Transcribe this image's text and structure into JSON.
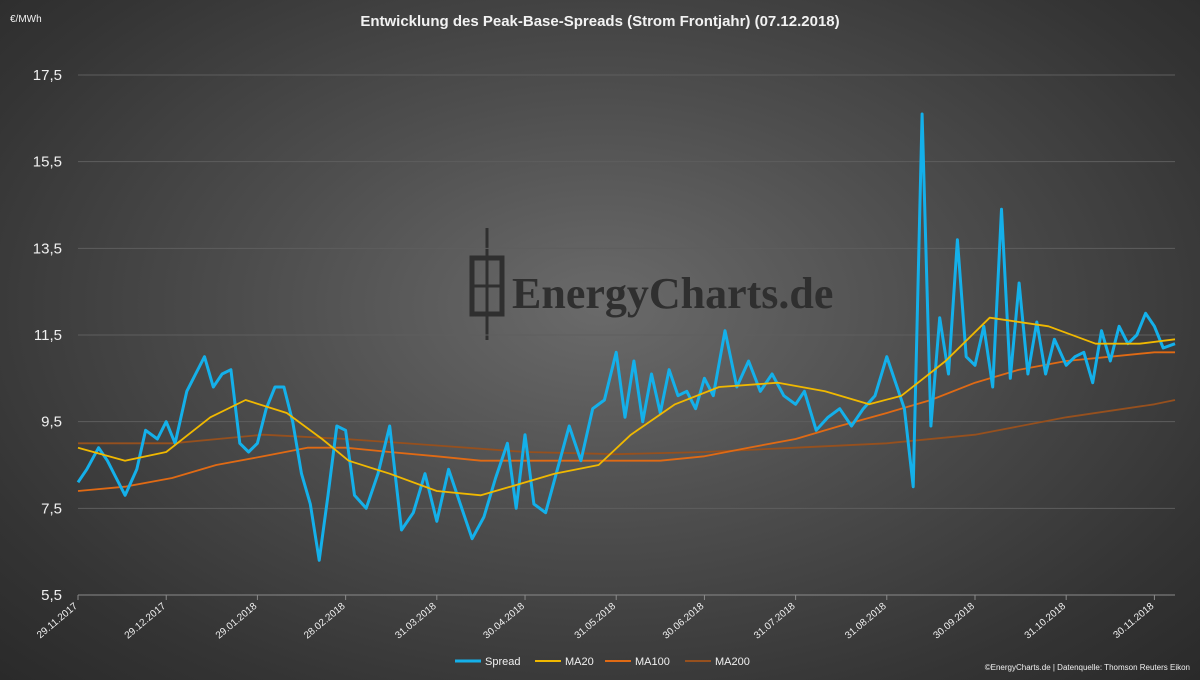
{
  "chart_data": {
    "type": "line",
    "title": "Entwicklung des Peak-Base-Spreads (Strom Frontjahr) (07.12.2018)",
    "ylabel": "€/MWh",
    "ylim": [
      5.5,
      17.5
    ],
    "yticks": [
      "5,5",
      "7,5",
      "9,5",
      "11,5",
      "13,5",
      "15,5",
      "17,5"
    ],
    "xticks": [
      "29.11.2017",
      "29.12.2017",
      "29.01.2018",
      "28.02.2018",
      "31.03.2018",
      "30.04.2018",
      "31.05.2018",
      "30.06.2018",
      "31.07.2018",
      "31.08.2018",
      "30.09.2018",
      "31.10.2018",
      "30.11.2018"
    ],
    "x_start": "29.11.2017",
    "x_end": "07.12.2018",
    "grid": true,
    "legend_position": "bottom",
    "watermark": "EnergyCharts.de",
    "credit": "©EnergyCharts.de | Datenquelle: Thomson Reuters Eikon",
    "series": [
      {
        "name": "Spread",
        "color": "#14b0ea",
        "x": [
          "29.11.2017",
          "02.12.2017",
          "06.12.2017",
          "09.12.2017",
          "12.12.2017",
          "15.12.2017",
          "19.12.2017",
          "22.12.2017",
          "26.12.2017",
          "29.12.2017",
          "01.01.2018",
          "05.01.2018",
          "08.01.2018",
          "11.01.2018",
          "14.01.2018",
          "17.01.2018",
          "20.01.2018",
          "23.01.2018",
          "26.01.2018",
          "29.01.2018",
          "01.02.2018",
          "04.02.2018",
          "07.02.2018",
          "10.02.2018",
          "13.02.2018",
          "16.02.2018",
          "19.02.2018",
          "22.02.2018",
          "25.02.2018",
          "28.02.2018",
          "03.03.2018",
          "07.03.2018",
          "11.03.2018",
          "15.03.2018",
          "19.03.2018",
          "23.03.2018",
          "27.03.2018",
          "31.03.2018",
          "04.04.2018",
          "08.04.2018",
          "12.04.2018",
          "16.04.2018",
          "20.04.2018",
          "24.04.2018",
          "27.04.2018",
          "30.04.2018",
          "03.05.2018",
          "07.05.2018",
          "11.05.2018",
          "15.05.2018",
          "19.05.2018",
          "23.05.2018",
          "27.05.2018",
          "31.05.2018",
          "03.06.2018",
          "06.06.2018",
          "09.06.2018",
          "12.06.2018",
          "15.06.2018",
          "18.06.2018",
          "21.06.2018",
          "24.06.2018",
          "27.06.2018",
          "30.06.2018",
          "03.07.2018",
          "07.07.2018",
          "11.07.2018",
          "15.07.2018",
          "19.07.2018",
          "23.07.2018",
          "27.07.2018",
          "31.07.2018",
          "03.08.2018",
          "07.08.2018",
          "11.08.2018",
          "15.08.2018",
          "19.08.2018",
          "23.08.2018",
          "27.08.2018",
          "31.08.2018",
          "03.09.2018",
          "06.09.2018",
          "09.09.2018",
          "12.09.2018",
          "15.09.2018",
          "18.09.2018",
          "21.09.2018",
          "24.09.2018",
          "27.09.2018",
          "30.09.2018",
          "03.10.2018",
          "06.10.2018",
          "09.10.2018",
          "12.10.2018",
          "15.10.2018",
          "18.10.2018",
          "21.10.2018",
          "24.10.2018",
          "27.10.2018",
          "31.10.2018",
          "03.11.2018",
          "06.11.2018",
          "09.11.2018",
          "12.11.2018",
          "15.11.2018",
          "18.11.2018",
          "21.11.2018",
          "24.11.2018",
          "27.11.2018",
          "30.11.2018",
          "03.12.2018",
          "07.12.2018"
        ],
        "values": [
          8.1,
          8.4,
          8.9,
          8.6,
          8.2,
          7.8,
          8.4,
          9.3,
          9.1,
          9.5,
          9.0,
          10.2,
          10.6,
          11.0,
          10.3,
          10.6,
          10.7,
          9.0,
          8.8,
          9.0,
          9.8,
          10.3,
          10.3,
          9.5,
          8.3,
          7.6,
          6.3,
          7.8,
          9.4,
          9.3,
          7.8,
          7.5,
          8.3,
          9.4,
          7.0,
          7.4,
          8.3,
          7.2,
          8.4,
          7.6,
          6.8,
          7.3,
          8.2,
          9.0,
          7.5,
          9.2,
          7.6,
          7.4,
          8.4,
          9.4,
          8.6,
          9.8,
          10.0,
          11.1,
          9.6,
          10.9,
          9.5,
          10.6,
          9.7,
          10.7,
          10.1,
          10.2,
          9.8,
          10.5,
          10.1,
          11.6,
          10.3,
          10.9,
          10.2,
          10.6,
          10.1,
          9.9,
          10.2,
          9.3,
          9.6,
          9.8,
          9.4,
          9.8,
          10.1,
          11.0,
          10.4,
          9.8,
          8.0,
          16.6,
          9.4,
          11.9,
          10.6,
          13.7,
          11.0,
          10.8,
          11.7,
          10.3,
          14.4,
          10.5,
          12.7,
          10.6,
          11.8,
          10.6,
          11.4,
          10.8,
          11.0,
          11.1,
          10.4,
          11.6,
          10.9,
          11.7,
          11.3,
          11.5,
          12.0,
          11.7,
          11.2,
          11.3
        ]
      },
      {
        "name": "MA20",
        "color": "#f0b800",
        "x": [
          "29.11.2017",
          "15.12.2017",
          "29.12.2017",
          "13.01.2018",
          "25.01.2018",
          "08.02.2018",
          "20.02.2018",
          "01.03.2018",
          "15.03.2018",
          "31.03.2018",
          "15.04.2018",
          "25.04.2018",
          "10.05.2018",
          "25.05.2018",
          "05.06.2018",
          "20.06.2018",
          "05.07.2018",
          "25.07.2018",
          "10.08.2018",
          "25.08.2018",
          "05.09.2018",
          "20.09.2018",
          "05.10.2018",
          "25.10.2018",
          "10.11.2018",
          "25.11.2018",
          "07.12.2018"
        ],
        "values": [
          8.9,
          8.6,
          8.8,
          9.6,
          10.0,
          9.7,
          9.1,
          8.6,
          8.3,
          7.9,
          7.8,
          8.0,
          8.3,
          8.5,
          9.2,
          9.9,
          10.3,
          10.4,
          10.2,
          9.9,
          10.1,
          10.9,
          11.9,
          11.7,
          11.3,
          11.3,
          11.4
        ]
      },
      {
        "name": "MA100",
        "color": "#e06a14",
        "x": [
          "29.11.2017",
          "15.12.2017",
          "31.12.2017",
          "15.01.2018",
          "31.01.2018",
          "15.02.2018",
          "28.02.2018",
          "15.03.2018",
          "31.03.2018",
          "15.04.2018",
          "30.04.2018",
          "15.05.2018",
          "31.05.2018",
          "15.06.2018",
          "30.06.2018",
          "15.07.2018",
          "31.07.2018",
          "15.08.2018",
          "31.08.2018",
          "15.09.2018",
          "30.09.2018",
          "15.10.2018",
          "31.10.2018",
          "15.11.2018",
          "30.11.2018",
          "07.12.2018"
        ],
        "values": [
          7.9,
          8.0,
          8.2,
          8.5,
          8.7,
          8.9,
          8.9,
          8.8,
          8.7,
          8.6,
          8.6,
          8.6,
          8.6,
          8.6,
          8.7,
          8.9,
          9.1,
          9.4,
          9.7,
          10.0,
          10.4,
          10.7,
          10.9,
          11.0,
          11.1,
          11.1
        ]
      },
      {
        "name": "MA200",
        "color": "#96501e",
        "x": [
          "29.11.2017",
          "31.12.2017",
          "31.01.2018",
          "28.02.2018",
          "31.03.2018",
          "30.04.2018",
          "31.05.2018",
          "30.06.2018",
          "31.07.2018",
          "31.08.2018",
          "30.09.2018",
          "31.10.2018",
          "30.11.2018",
          "07.12.2018"
        ],
        "values": [
          9.0,
          9.0,
          9.2,
          9.1,
          8.95,
          8.8,
          8.75,
          8.8,
          8.9,
          9.0,
          9.2,
          9.6,
          9.9,
          10.0
        ]
      }
    ]
  }
}
